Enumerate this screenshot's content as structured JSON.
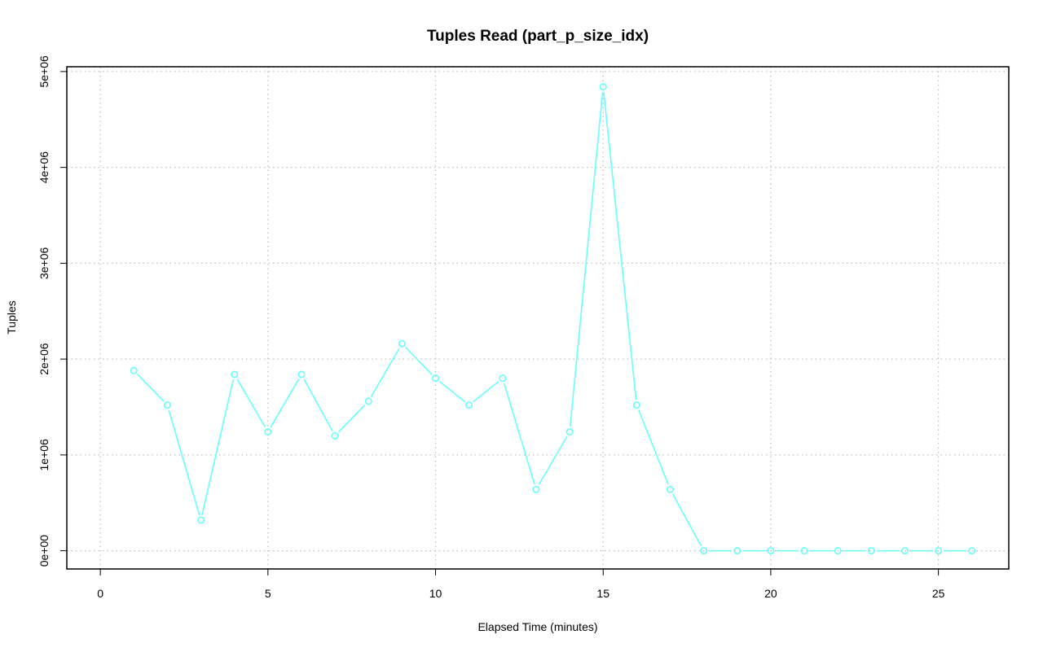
{
  "chart_data": {
    "type": "line",
    "title": "Tuples Read (part_p_size_idx)",
    "xlabel": "Elapsed Time (minutes)",
    "ylabel": "Tuples",
    "xlim": [
      -1,
      27.1
    ],
    "ylim": [
      -190000,
      5050000
    ],
    "x_ticks": [
      0,
      5,
      10,
      15,
      20,
      25
    ],
    "x_tick_labels": [
      "0",
      "5",
      "10",
      "15",
      "20",
      "25"
    ],
    "y_ticks": [
      0,
      1000000,
      2000000,
      3000000,
      4000000,
      5000000
    ],
    "y_tick_labels": [
      "0e+00",
      "1e+06",
      "2e+06",
      "3e+06",
      "4e+06",
      "5e+06"
    ],
    "grid": true,
    "series_color": "#66ffff",
    "x": [
      1,
      2,
      3,
      4,
      5,
      6,
      7,
      8,
      9,
      10,
      11,
      12,
      13,
      14,
      15,
      16,
      17,
      18,
      19,
      20,
      21,
      22,
      23,
      24,
      25,
      26
    ],
    "values": [
      1880000,
      1520000,
      320000,
      1840000,
      1240000,
      1840000,
      1200000,
      1560000,
      2160000,
      1800000,
      1520000,
      1800000,
      640000,
      1240000,
      4840000,
      1520000,
      640000,
      0,
      0,
      0,
      0,
      0,
      0,
      0,
      0,
      0
    ]
  }
}
